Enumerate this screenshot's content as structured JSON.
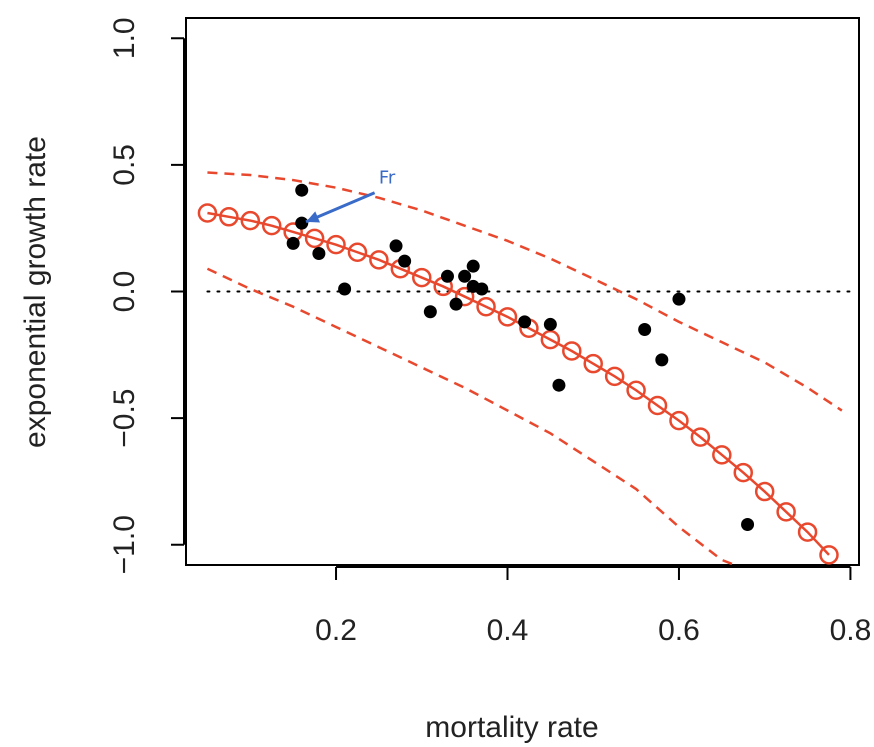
{
  "chart_data": {
    "type": "scatter",
    "title": "",
    "xlabel": "mortality rate",
    "ylabel": "exponential growth rate",
    "xlim": [
      0.025,
      0.81
    ],
    "ylim": [
      -1.08,
      1.08
    ],
    "x_ticks": [
      0.2,
      0.4,
      0.6,
      0.8
    ],
    "x_tick_labels": [
      "0.2",
      "0.4",
      "0.6",
      "0.8"
    ],
    "y_ticks": [
      -1.0,
      -0.5,
      0.0,
      0.5,
      1.0
    ],
    "y_tick_labels": [
      "−1.0",
      "−0.5",
      "0.0",
      "0.5",
      "1.0"
    ],
    "grid": false,
    "reference_line": {
      "y": 0.0,
      "x_range": [
        0.05,
        0.8
      ],
      "style": "dotted",
      "color": "#000000"
    },
    "series": [
      {
        "kind": "points",
        "color": "#000000",
        "points": [
          [
            0.15,
            0.19
          ],
          [
            0.16,
            0.4
          ],
          [
            0.16,
            0.27
          ],
          [
            0.18,
            0.15
          ],
          [
            0.21,
            0.01
          ],
          [
            0.27,
            0.18
          ],
          [
            0.28,
            0.12
          ],
          [
            0.31,
            -0.08
          ],
          [
            0.33,
            0.06
          ],
          [
            0.34,
            -0.05
          ],
          [
            0.35,
            0.06
          ],
          [
            0.36,
            0.1
          ],
          [
            0.36,
            0.02
          ],
          [
            0.37,
            0.01
          ],
          [
            0.42,
            -0.12
          ],
          [
            0.45,
            -0.13
          ],
          [
            0.46,
            -0.37
          ],
          [
            0.56,
            -0.15
          ],
          [
            0.58,
            -0.27
          ],
          [
            0.6,
            -0.03
          ],
          [
            0.68,
            -0.92
          ]
        ]
      },
      {
        "kind": "fit",
        "color": "#e8492e",
        "style": "solid",
        "marker": "open-circle",
        "x": [
          0.05,
          0.075,
          0.1,
          0.125,
          0.15,
          0.175,
          0.2,
          0.225,
          0.25,
          0.275,
          0.3,
          0.325,
          0.35,
          0.375,
          0.4,
          0.425,
          0.45,
          0.475,
          0.5,
          0.525,
          0.55,
          0.575,
          0.6,
          0.625,
          0.65,
          0.675,
          0.7,
          0.725,
          0.75,
          0.775
        ],
        "y": [
          0.31,
          0.295,
          0.28,
          0.26,
          0.235,
          0.21,
          0.185,
          0.155,
          0.125,
          0.09,
          0.055,
          0.02,
          -0.02,
          -0.06,
          -0.1,
          -0.145,
          -0.19,
          -0.235,
          -0.285,
          -0.335,
          -0.39,
          -0.45,
          -0.51,
          -0.575,
          -0.645,
          -0.715,
          -0.79,
          -0.87,
          -0.95,
          -1.04
        ]
      },
      {
        "kind": "upper-bound",
        "color": "#e8492e",
        "style": "dashed",
        "x": [
          0.05,
          0.1,
          0.15,
          0.2,
          0.25,
          0.3,
          0.35,
          0.4,
          0.45,
          0.5,
          0.55,
          0.6,
          0.65,
          0.7,
          0.75,
          0.79
        ],
        "y": [
          0.47,
          0.46,
          0.44,
          0.41,
          0.37,
          0.32,
          0.26,
          0.2,
          0.13,
          0.05,
          -0.03,
          -0.12,
          -0.2,
          -0.28,
          -0.38,
          -0.47
        ]
      },
      {
        "kind": "lower-bound",
        "color": "#e8492e",
        "style": "dashed",
        "x": [
          0.05,
          0.1,
          0.15,
          0.2,
          0.25,
          0.3,
          0.35,
          0.4,
          0.45,
          0.5,
          0.55,
          0.6,
          0.65,
          0.665
        ],
        "y": [
          0.09,
          0.01,
          -0.06,
          -0.14,
          -0.22,
          -0.3,
          -0.38,
          -0.47,
          -0.56,
          -0.67,
          -0.78,
          -0.93,
          -1.06,
          -1.08
        ]
      }
    ],
    "annotation": {
      "text": "Fr",
      "color": "#3a6bc9",
      "label_at": [
        0.25,
        0.45
      ],
      "arrow_from": [
        0.245,
        0.39
      ],
      "arrow_to": [
        0.165,
        0.275
      ]
    }
  }
}
